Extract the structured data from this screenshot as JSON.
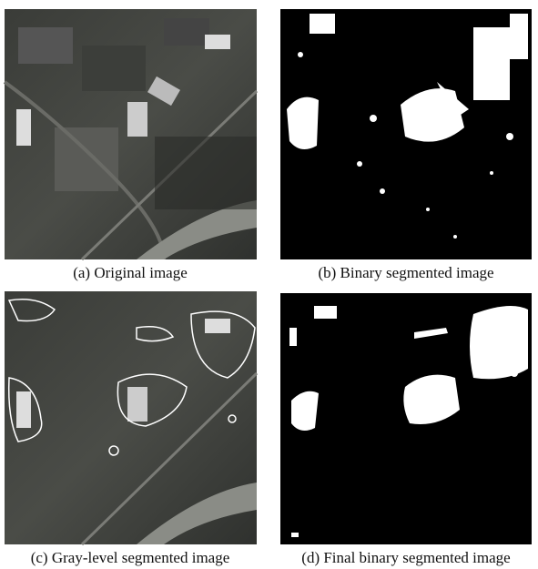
{
  "panels": [
    {
      "caption": "(a) Original image"
    },
    {
      "caption": "(b) Binary segmented image"
    },
    {
      "caption": "(c) Gray-level segmented image"
    },
    {
      "caption": "(d) Final binary segmented image"
    }
  ]
}
